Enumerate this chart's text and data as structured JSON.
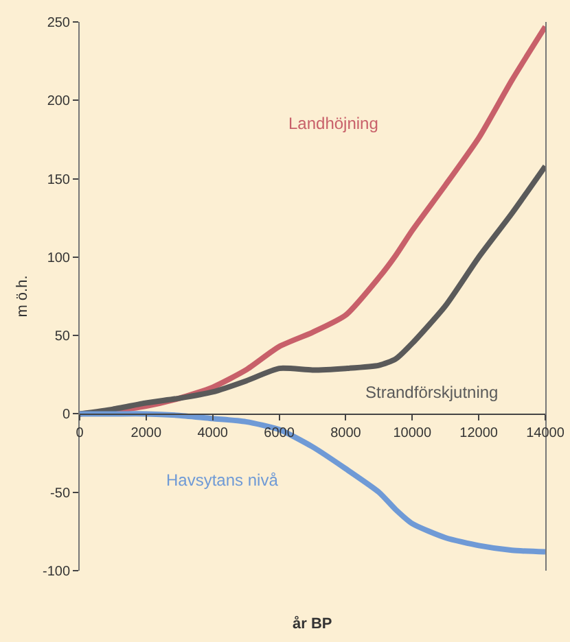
{
  "chart_data": {
    "type": "line",
    "xlabel": "år BP",
    "ylabel": "m ö.h.",
    "x": [
      0,
      1000,
      2000,
      3000,
      4000,
      5000,
      6000,
      7000,
      8000,
      9000,
      9500,
      10000,
      11000,
      12000,
      13000,
      14000
    ],
    "series": [
      {
        "name": "Landhöjning",
        "color": "#c8606a",
        "values": [
          0,
          2,
          5,
          10,
          17,
          28,
          43,
          52,
          63,
          87,
          101,
          117,
          146,
          176,
          213,
          247
        ]
      },
      {
        "name": "Strandförskjutning",
        "color": "#5a5a5a",
        "values": [
          0,
          3,
          7,
          10,
          14,
          21,
          29,
          28,
          29,
          31,
          35,
          45,
          69,
          100,
          128,
          158
        ]
      },
      {
        "name": "Havsytans nivå",
        "color": "#6f9ad6",
        "values": [
          0,
          0,
          0,
          -1,
          -3,
          -5,
          -10,
          -21,
          -35,
          -50,
          -61,
          -70,
          -79,
          -84,
          -87,
          -88
        ]
      }
    ],
    "xlim": [
      0,
      14000
    ],
    "xticks": [
      0,
      2000,
      4000,
      6000,
      8000,
      10000,
      12000,
      14000
    ],
    "ylim": [
      -100,
      250
    ],
    "yticks": [
      -100,
      -50,
      0,
      50,
      100,
      150,
      200,
      250
    ],
    "grid": false,
    "legend": false,
    "marker": "none",
    "line_style": "solid"
  }
}
